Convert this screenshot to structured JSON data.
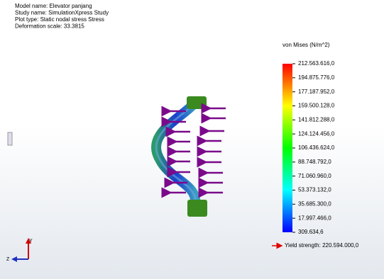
{
  "header": {
    "lines": [
      "Model name: Elevator panjang",
      "Study name: SimulationXpress Study",
      "Plot type: Static nodal stress Stress",
      "Deformation scale: 33.3815"
    ]
  },
  "legend": {
    "title": "von Mises (N/m^2)",
    "labels": [
      "212.563.616,0",
      "194.875.776,0",
      "177.187.952,0",
      "159.500.128,0",
      "141.812.288,0",
      "124.124.456,0",
      "106.436.624,0",
      "88.748.792,0",
      "71.060.960,0",
      "53.373.132,0",
      "35.685.300,0",
      "17.997.466,0",
      "309.634,6"
    ],
    "yield": "Yield strength: 220.594.000,0"
  },
  "triad": {
    "y": "Y",
    "z": "Z"
  }
}
